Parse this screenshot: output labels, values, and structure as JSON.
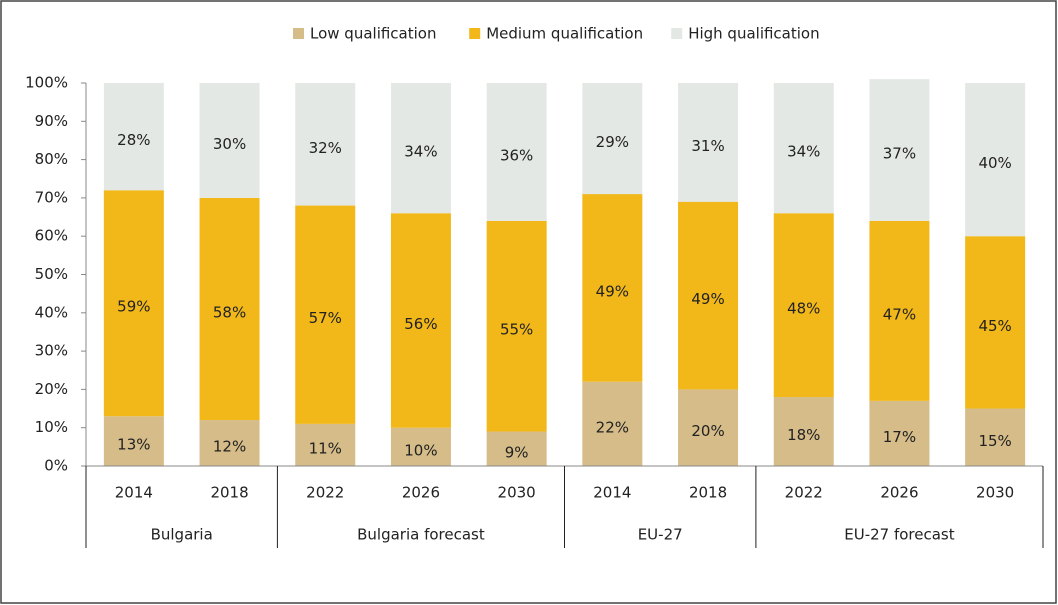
{
  "chart_data": {
    "type": "stacked_bar",
    "categories": [
      "2014",
      "2018",
      "2022",
      "2026",
      "2030",
      "2014",
      "2018",
      "2022",
      "2026",
      "2030"
    ],
    "groups": [
      {
        "name": "Bulgaria",
        "span": 2
      },
      {
        "name": "Bulgaria forecast",
        "span": 3
      },
      {
        "name": "EU-27",
        "span": 2
      },
      {
        "name": "EU-27 forecast",
        "span": 3
      }
    ],
    "series": [
      {
        "name": "Low qualification",
        "color": "#d5bc88",
        "values": [
          13,
          12,
          11,
          10,
          9,
          22,
          20,
          18,
          17,
          15
        ],
        "value_labels": [
          "13%",
          "12%",
          "11%",
          "10%",
          "9%",
          "22%",
          "20%",
          "18%",
          "17%",
          "15%"
        ]
      },
      {
        "name": "Medium qualification",
        "color": "#f2b81a",
        "values": [
          59,
          58,
          57,
          56,
          55,
          49,
          49,
          48,
          47,
          45
        ],
        "value_labels": [
          "59%",
          "58%",
          "57%",
          "56%",
          "55%",
          "49%",
          "49%",
          "48%",
          "47%",
          "45%"
        ]
      },
      {
        "name": "High qualification",
        "color": "#e4e8e4",
        "values": [
          28,
          30,
          32,
          34,
          36,
          29,
          31,
          34,
          37,
          40
        ],
        "value_labels": [
          "28%",
          "30%",
          "32%",
          "34%",
          "36%",
          "29%",
          "31%",
          "34%",
          "37%",
          "40%"
        ]
      }
    ],
    "ylim": [
      0,
      100
    ],
    "yticks": [
      {
        "value": 0,
        "label": "0%"
      },
      {
        "value": 10,
        "label": "10%"
      },
      {
        "value": 20,
        "label": "20%"
      },
      {
        "value": 30,
        "label": "30%"
      },
      {
        "value": 40,
        "label": "40%"
      },
      {
        "value": 50,
        "label": "50%"
      },
      {
        "value": 60,
        "label": "60%"
      },
      {
        "value": 70,
        "label": "70%"
      },
      {
        "value": 80,
        "label": "80%"
      },
      {
        "value": 90,
        "label": "90%"
      },
      {
        "value": 100,
        "label": "100%"
      }
    ],
    "legend": "top",
    "grid": false
  }
}
